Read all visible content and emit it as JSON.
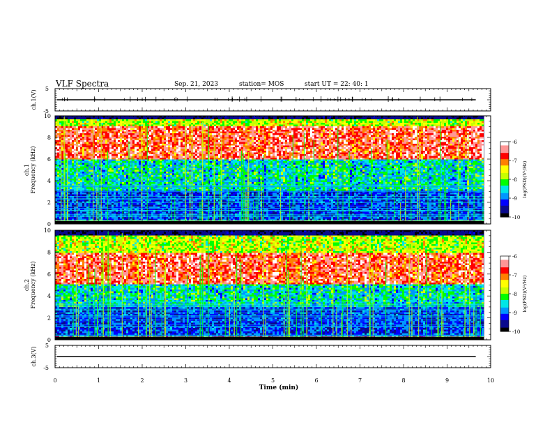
{
  "header": {
    "title": "VLF Spectra",
    "date": "Sep. 21, 2023",
    "station": "station= MOS",
    "start_ut": "start  UT =   22: 40: 1"
  },
  "colors": {
    "spectrogram": [
      "#000000",
      "#0a0a8c",
      "#0000ff",
      "#0096ff",
      "#00e6e6",
      "#00ff00",
      "#c8ff00",
      "#ffff00",
      "#ff8000",
      "#ff0000",
      "#ff9696",
      "#ffffff"
    ]
  },
  "chart_data": [
    {
      "type": "line",
      "name": "ch1-waveform",
      "ylabel": "ch.1(V)",
      "ylim": [
        -5,
        5
      ],
      "yticks": [
        "5",
        "-5"
      ],
      "x": [
        0,
        10
      ],
      "y": [
        0,
        0
      ]
    },
    {
      "type": "heatmap",
      "name": "ch1-spectrogram",
      "ylabel": "ch.1\nFrequency  (kHz)",
      "ylim": [
        0,
        10
      ],
      "yticks": [
        "0",
        "2",
        "4",
        "6",
        "8",
        "10"
      ],
      "xlim": [
        0,
        9.85
      ],
      "colorbar": {
        "label": "log(PSD)(V²/Hz)",
        "ticks": [
          "-6",
          "-7",
          "-8",
          "-9",
          "-10"
        ],
        "range": [
          -10,
          -6
        ]
      },
      "notes_band_khz": [
        6.0,
        9.0
      ]
    },
    {
      "type": "heatmap",
      "name": "ch2-spectrogram",
      "ylabel": "ch.2\nFrequency  (kHz)",
      "ylim": [
        0,
        10
      ],
      "yticks": [
        "0",
        "2",
        "4",
        "6",
        "8",
        "10"
      ],
      "xlim": [
        0,
        9.85
      ],
      "colorbar": {
        "label": "log(PSD)(V²/Hz)",
        "ticks": [
          "-6",
          "-7",
          "-8",
          "-9",
          "-10"
        ],
        "range": [
          -10,
          -6
        ]
      },
      "notes_band_khz": [
        5.0,
        8.0
      ]
    },
    {
      "type": "line",
      "name": "ch3-waveform",
      "ylabel": "ch.3(V)",
      "ylim": [
        -5,
        5
      ],
      "yticks": [
        "5",
        "-5"
      ],
      "x": [
        0,
        10
      ],
      "y": [
        0,
        0
      ]
    }
  ],
  "xaxis": {
    "label": "Time  (min)",
    "ticks": [
      "0",
      "1",
      "2",
      "3",
      "4",
      "5",
      "6",
      "7",
      "8",
      "9",
      "10"
    ],
    "range": [
      0,
      10
    ]
  }
}
